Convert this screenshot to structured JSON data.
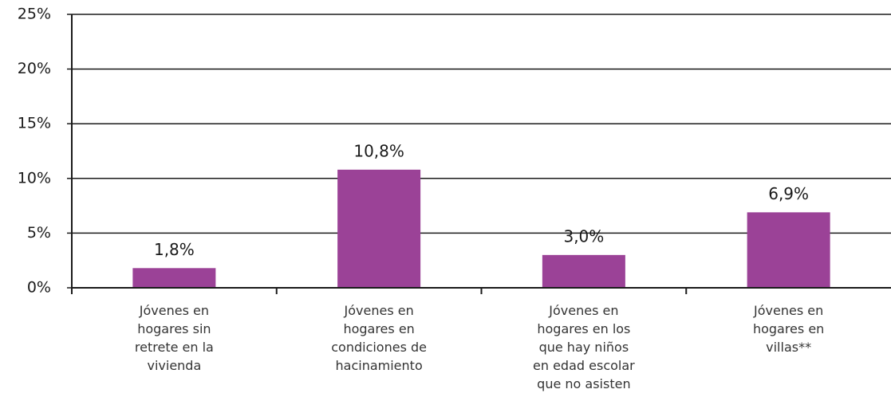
{
  "chart_data": {
    "type": "bar",
    "categories": [
      "Jóvenes en\nhogares sin\nretrete en la\nvivienda",
      "Jóvenes en\nhogares en\ncondiciones de\nhacinamiento",
      "Jóvenes en\nhogares en los\nque hay niños\nen edad escolar\nque no asisten",
      "Jóvenes en\nhogares en\nvillas**"
    ],
    "values": [
      1.8,
      10.8,
      3.0,
      6.9
    ],
    "value_labels": [
      "1,8%",
      "10,8%",
      "3,0%",
      "6,9%"
    ],
    "color": "#9b4297",
    "ylim": [
      0,
      25
    ],
    "yticks": [
      {
        "value": 0,
        "label": "0%"
      },
      {
        "value": 5,
        "label": "5%"
      },
      {
        "value": 10,
        "label": "10%"
      },
      {
        "value": 15,
        "label": "15%"
      },
      {
        "value": 20,
        "label": "20%"
      },
      {
        "value": 25,
        "label": "25%"
      }
    ],
    "grid": true
  }
}
